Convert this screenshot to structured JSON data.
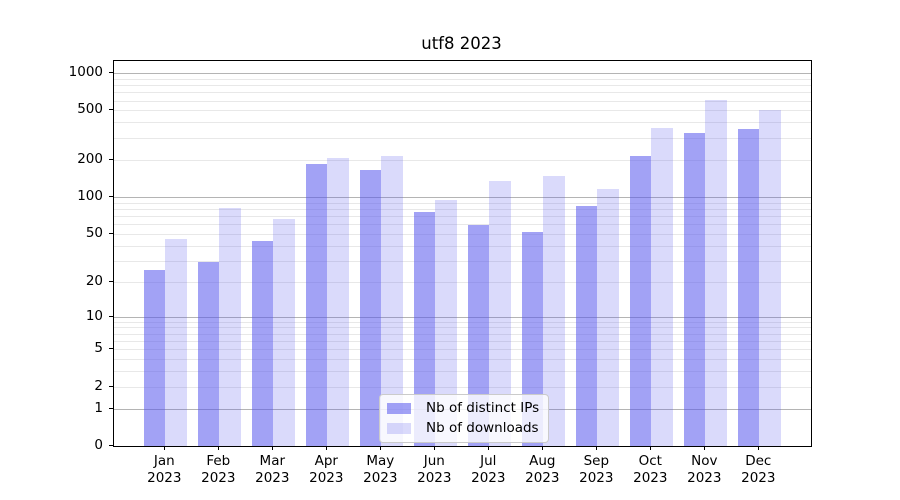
{
  "title": "utf8 2023",
  "chart_data": {
    "type": "bar",
    "title": "utf8 2023",
    "categories": [
      "Jan",
      "Feb",
      "Mar",
      "Apr",
      "May",
      "Jun",
      "Jul",
      "Aug",
      "Sep",
      "Oct",
      "Nov",
      "Dec"
    ],
    "category_year": "2023",
    "series": [
      {
        "name": "Nb of distinct IPs",
        "color": "rgba(86,86,236,0.55)",
        "values": [
          25,
          29,
          44,
          185,
          165,
          76,
          59,
          52,
          85,
          213,
          330,
          355
        ]
      },
      {
        "name": "Nb of downloads",
        "color": "rgba(86,86,236,0.22)",
        "values": [
          45,
          82,
          66,
          205,
          214,
          95,
          134,
          147,
          115,
          360,
          610,
          500
        ]
      }
    ],
    "yscale": "log1p",
    "ylim": [
      0,
      1250
    ],
    "yticks": [
      0,
      1,
      2,
      5,
      10,
      20,
      50,
      100,
      200,
      500,
      1000
    ],
    "major_grid_values": [
      1,
      10,
      100,
      1000
    ],
    "minor_grid_values": [
      2,
      3,
      4,
      5,
      6,
      7,
      8,
      9,
      20,
      30,
      40,
      50,
      60,
      70,
      80,
      90,
      200,
      300,
      400,
      500,
      600,
      700,
      800,
      900
    ],
    "grid": true,
    "legend_position": "lower center"
  },
  "colors": {
    "major_grid": "#b4b4b4",
    "minor_grid": "#e8e8e8",
    "spine": "#000000",
    "background": "#ffffff"
  }
}
